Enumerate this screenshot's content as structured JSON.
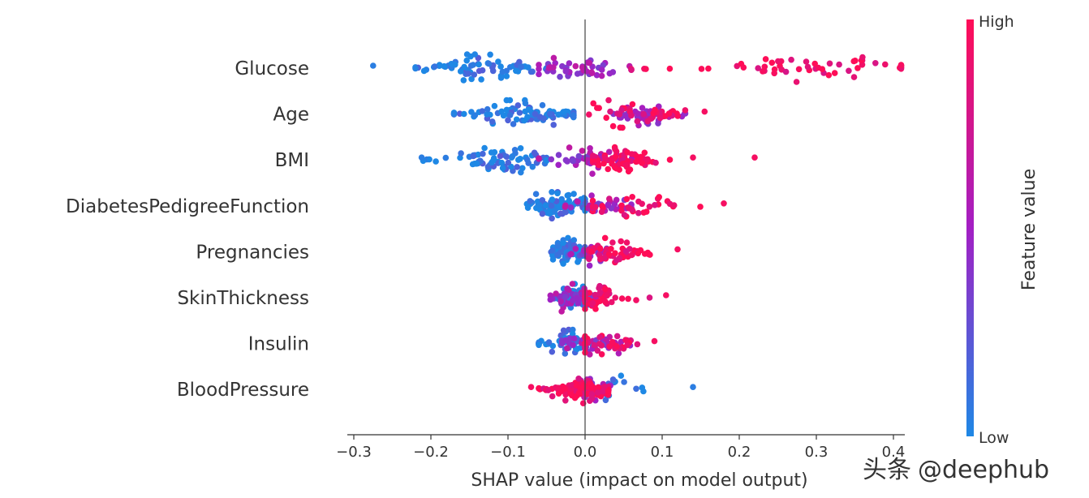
{
  "chart_data": {
    "type": "scatter",
    "subtype": "shap-beeswarm",
    "title": "",
    "xlabel": "SHAP value (impact on model output)",
    "ylabel": "",
    "xlim": [
      -0.31,
      0.44
    ],
    "xticks": [
      -0.3,
      -0.2,
      -0.1,
      0.0,
      0.1,
      0.2,
      0.3,
      0.4
    ],
    "xtick_labels": [
      "−0.3",
      "−0.2",
      "−0.1",
      "0.0",
      "0.1",
      "0.2",
      "0.3",
      "0.4"
    ],
    "zero_line": 0.0,
    "features": [
      {
        "name": "Glucose",
        "low": {
          "range": [
            -0.22,
            -0.05
          ],
          "center": -0.14,
          "count": 70
        },
        "mid": {
          "range": [
            -0.06,
            0.06
          ],
          "center": -0.01,
          "count": 45
        },
        "high": {
          "range": [
            0.06,
            0.41
          ],
          "center": 0.28,
          "count": 55
        },
        "outliers": [
          {
            "x": -0.275,
            "value": "low"
          },
          {
            "x": 0.41,
            "value": "high"
          }
        ]
      },
      {
        "name": "Age",
        "low": {
          "range": [
            -0.17,
            -0.015
          ],
          "center": -0.085,
          "count": 90
        },
        "mid": {
          "range": [
            0.03,
            0.13
          ],
          "center": 0.08,
          "count": 40
        },
        "high": {
          "range": [
            0.005,
            0.155
          ],
          "center": 0.055,
          "count": 40
        },
        "outliers": [
          {
            "x": 0.155,
            "value": "high"
          }
        ]
      },
      {
        "name": "BMI",
        "low": {
          "range": [
            -0.21,
            -0.05
          ],
          "center": -0.11,
          "count": 75
        },
        "mid": {
          "range": [
            -0.06,
            0.07
          ],
          "center": 0.0,
          "count": 45
        },
        "high": {
          "range": [
            0.01,
            0.11
          ],
          "center": 0.045,
          "count": 70
        },
        "outliers": [
          {
            "x": -0.212,
            "value": "low"
          },
          {
            "x": 0.14,
            "value": "high"
          },
          {
            "x": 0.22,
            "value": "high"
          }
        ]
      },
      {
        "name": "DiabetesPedigreeFunction",
        "low": {
          "range": [
            -0.09,
            0.0
          ],
          "center": -0.035,
          "count": 85
        },
        "mid": {
          "range": [
            -0.03,
            0.06
          ],
          "center": 0.02,
          "count": 30
        },
        "high": {
          "range": [
            0.01,
            0.16
          ],
          "center": 0.06,
          "count": 35
        },
        "outliers": [
          {
            "x": 0.18,
            "value": "high"
          }
        ]
      },
      {
        "name": "Pregnancies",
        "low": {
          "range": [
            -0.045,
            0.005
          ],
          "center": -0.02,
          "count": 90
        },
        "mid": {
          "range": [
            -0.02,
            0.03
          ],
          "center": 0.005,
          "count": 25
        },
        "high": {
          "range": [
            0.005,
            0.1
          ],
          "center": 0.04,
          "count": 55
        },
        "outliers": [
          {
            "x": 0.12,
            "value": "high"
          }
        ]
      },
      {
        "name": "SkinThickness",
        "low": {
          "range": [
            -0.04,
            0.01
          ],
          "center": -0.01,
          "count": 60
        },
        "mid": {
          "range": [
            -0.045,
            0.02
          ],
          "center": -0.02,
          "count": 40
        },
        "high": {
          "range": [
            0.0,
            0.11
          ],
          "center": 0.02,
          "count": 50
        },
        "outliers": [
          {
            "x": 0.105,
            "value": "high"
          }
        ]
      },
      {
        "name": "Insulin",
        "low": {
          "range": [
            -0.06,
            0.01
          ],
          "center": -0.02,
          "count": 60
        },
        "mid": {
          "range": [
            -0.03,
            0.06
          ],
          "center": 0.01,
          "count": 35
        },
        "high": {
          "range": [
            0.0,
            0.09
          ],
          "center": 0.02,
          "count": 35
        },
        "outliers": [
          {
            "x": 0.09,
            "value": "high"
          }
        ]
      },
      {
        "name": "BloodPressure",
        "low": {
          "range": [
            0.0,
            0.11
          ],
          "center": 0.03,
          "count": 25
        },
        "mid": {
          "range": [
            -0.03,
            0.04
          ],
          "center": 0.0,
          "count": 30
        },
        "high": {
          "range": [
            -0.06,
            0.03
          ],
          "center": -0.005,
          "count": 110
        },
        "outliers": [
          {
            "x": -0.07,
            "value": "high"
          },
          {
            "x": 0.14,
            "value": "low"
          }
        ]
      }
    ],
    "colorbar": {
      "label": "Feature value",
      "high_label": "High",
      "low_label": "Low",
      "high_color": "#ff0d57",
      "mid_color": "#a31fc4",
      "low_color": "#1e88e5"
    }
  },
  "watermark": {
    "prefix": "头条",
    "handle": "@deephub"
  }
}
